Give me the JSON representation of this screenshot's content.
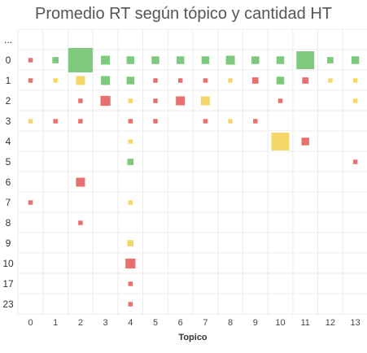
{
  "chart_data": {
    "type": "heatmap",
    "title": "Promedio RT según tópico y cantidad HT",
    "xlabel": "Topico",
    "ylabel": "",
    "x_categories": [
      "0",
      "1",
      "2",
      "3",
      "4",
      "5",
      "6",
      "7",
      "8",
      "9",
      "10",
      "11",
      "12",
      "13"
    ],
    "y_categories": [
      "...",
      "0",
      "1",
      "2",
      "3",
      "4",
      "5",
      "6",
      "7",
      "8",
      "9",
      "10",
      "17",
      "23"
    ],
    "legend": "none",
    "grid": true,
    "colors": {
      "green": "#7fc97f",
      "yellow": "#f5d769",
      "red": "#e8706f"
    },
    "cells": [
      {
        "x": "0",
        "y": "0",
        "size": 1,
        "color": "red"
      },
      {
        "x": "1",
        "y": "0",
        "size": 2,
        "color": "green"
      },
      {
        "x": "2",
        "y": "0",
        "size": 30,
        "color": "green"
      },
      {
        "x": "3",
        "y": "0",
        "size": 4,
        "color": "green"
      },
      {
        "x": "4",
        "y": "0",
        "size": 3,
        "color": "green"
      },
      {
        "x": "5",
        "y": "0",
        "size": 3,
        "color": "green"
      },
      {
        "x": "6",
        "y": "0",
        "size": 3,
        "color": "green"
      },
      {
        "x": "7",
        "y": "0",
        "size": 3,
        "color": "green"
      },
      {
        "x": "8",
        "y": "0",
        "size": 4,
        "color": "green"
      },
      {
        "x": "9",
        "y": "0",
        "size": 3,
        "color": "green"
      },
      {
        "x": "10",
        "y": "0",
        "size": 3,
        "color": "green"
      },
      {
        "x": "11",
        "y": "0",
        "size": 16,
        "color": "green"
      },
      {
        "x": "12",
        "y": "0",
        "size": 2,
        "color": "green"
      },
      {
        "x": "13",
        "y": "0",
        "size": 3,
        "color": "green"
      },
      {
        "x": "0",
        "y": "1",
        "size": 1,
        "color": "red"
      },
      {
        "x": "1",
        "y": "1",
        "size": 1,
        "color": "yellow"
      },
      {
        "x": "2",
        "y": "1",
        "size": 4,
        "color": "yellow"
      },
      {
        "x": "3",
        "y": "1",
        "size": 4,
        "color": "green"
      },
      {
        "x": "4",
        "y": "1",
        "size": 3,
        "color": "green"
      },
      {
        "x": "5",
        "y": "1",
        "size": 1,
        "color": "red"
      },
      {
        "x": "6",
        "y": "1",
        "size": 1,
        "color": "red"
      },
      {
        "x": "7",
        "y": "1",
        "size": 1,
        "color": "red"
      },
      {
        "x": "8",
        "y": "1",
        "size": 1,
        "color": "yellow"
      },
      {
        "x": "9",
        "y": "1",
        "size": 2,
        "color": "red"
      },
      {
        "x": "10",
        "y": "1",
        "size": 3,
        "color": "green"
      },
      {
        "x": "11",
        "y": "1",
        "size": 2,
        "color": "red"
      },
      {
        "x": "12",
        "y": "1",
        "size": 1,
        "color": "yellow"
      },
      {
        "x": "13",
        "y": "1",
        "size": 1,
        "color": "yellow"
      },
      {
        "x": "2",
        "y": "2",
        "size": 1,
        "color": "red"
      },
      {
        "x": "3",
        "y": "2",
        "size": 5,
        "color": "red"
      },
      {
        "x": "4",
        "y": "2",
        "size": 1,
        "color": "yellow"
      },
      {
        "x": "5",
        "y": "2",
        "size": 1,
        "color": "red"
      },
      {
        "x": "6",
        "y": "2",
        "size": 4,
        "color": "red"
      },
      {
        "x": "7",
        "y": "2",
        "size": 4,
        "color": "yellow"
      },
      {
        "x": "10",
        "y": "2",
        "size": 1,
        "color": "red"
      },
      {
        "x": "13",
        "y": "2",
        "size": 1,
        "color": "yellow"
      },
      {
        "x": "0",
        "y": "3",
        "size": 1,
        "color": "yellow"
      },
      {
        "x": "1",
        "y": "3",
        "size": 1,
        "color": "red"
      },
      {
        "x": "2",
        "y": "3",
        "size": 1,
        "color": "red"
      },
      {
        "x": "4",
        "y": "3",
        "size": 1,
        "color": "red"
      },
      {
        "x": "5",
        "y": "3",
        "size": 1,
        "color": "red"
      },
      {
        "x": "7",
        "y": "3",
        "size": 1,
        "color": "red"
      },
      {
        "x": "8",
        "y": "3",
        "size": 1,
        "color": "yellow"
      },
      {
        "x": "9",
        "y": "3",
        "size": 1,
        "color": "red"
      },
      {
        "x": "4",
        "y": "4",
        "size": 1,
        "color": "yellow"
      },
      {
        "x": "10",
        "y": "4",
        "size": 16,
        "color": "yellow"
      },
      {
        "x": "11",
        "y": "4",
        "size": 3,
        "color": "red"
      },
      {
        "x": "4",
        "y": "5",
        "size": 2,
        "color": "green"
      },
      {
        "x": "13",
        "y": "5",
        "size": 1,
        "color": "red"
      },
      {
        "x": "2",
        "y": "6",
        "size": 4,
        "color": "red"
      },
      {
        "x": "0",
        "y": "7",
        "size": 1,
        "color": "red"
      },
      {
        "x": "4",
        "y": "7",
        "size": 1,
        "color": "yellow"
      },
      {
        "x": "2",
        "y": "8",
        "size": 1,
        "color": "red"
      },
      {
        "x": "4",
        "y": "9",
        "size": 2,
        "color": "yellow"
      },
      {
        "x": "4",
        "y": "10",
        "size": 5,
        "color": "red"
      },
      {
        "x": "4",
        "y": "17",
        "size": 1,
        "color": "red"
      },
      {
        "x": "4",
        "y": "23",
        "size": 1,
        "color": "red"
      }
    ]
  }
}
